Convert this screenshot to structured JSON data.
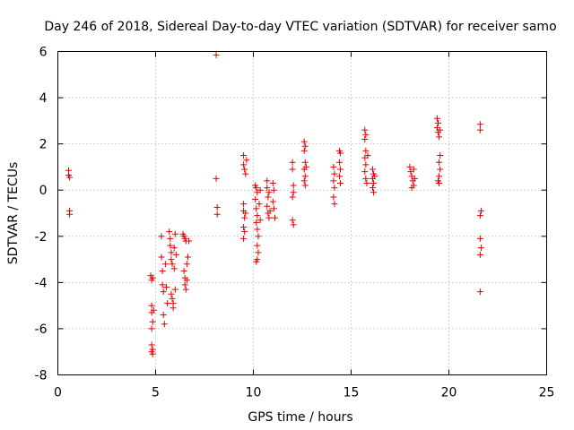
{
  "chart_data": {
    "type": "scatter",
    "title": "Day 246 of 2018, Sidereal Day-to-day VTEC variation (SDTVAR) for receiver samo",
    "xlabel": "GPS time / hours",
    "ylabel": "SDTVAR / TECUs",
    "xlim": [
      0,
      25
    ],
    "ylim": [
      -8,
      6
    ],
    "xticks": [
      0,
      5,
      10,
      15,
      20,
      25
    ],
    "yticks": [
      -8,
      -6,
      -4,
      -2,
      0,
      2,
      4,
      6
    ],
    "xtick_labels": [
      "0",
      "5",
      "10",
      "15",
      "20",
      "25"
    ],
    "ytick_labels": [
      "-8",
      "-6",
      "-4",
      "-2",
      "0",
      "2",
      "4",
      "6"
    ],
    "grid": true,
    "marker": "+",
    "color": "#e00000",
    "series": [
      {
        "name": "SDTVAR",
        "points": [
          [
            0.55,
            0.85
          ],
          [
            0.55,
            0.65
          ],
          [
            0.6,
            0.55
          ],
          [
            0.6,
            -0.9
          ],
          [
            0.6,
            -1.05
          ],
          [
            4.75,
            -3.7
          ],
          [
            4.8,
            -3.9
          ],
          [
            4.8,
            -5.0
          ],
          [
            4.8,
            -5.3
          ],
          [
            4.85,
            -5.7
          ],
          [
            4.8,
            -6.0
          ],
          [
            4.8,
            -6.7
          ],
          [
            4.85,
            -6.9
          ],
          [
            4.8,
            -7.0
          ],
          [
            4.85,
            -7.1
          ],
          [
            4.9,
            -5.2
          ],
          [
            4.85,
            -3.8
          ],
          [
            5.3,
            -2.0
          ],
          [
            5.3,
            -2.9
          ],
          [
            5.35,
            -3.5
          ],
          [
            5.35,
            -4.1
          ],
          [
            5.4,
            -4.4
          ],
          [
            5.4,
            -5.4
          ],
          [
            5.45,
            -5.8
          ],
          [
            5.5,
            -3.2
          ],
          [
            5.55,
            -4.2
          ],
          [
            5.6,
            -4.9
          ],
          [
            5.7,
            -1.8
          ],
          [
            5.75,
            -2.1
          ],
          [
            5.75,
            -2.4
          ],
          [
            5.8,
            -2.7
          ],
          [
            5.8,
            -3.0
          ],
          [
            5.85,
            -3.2
          ],
          [
            5.8,
            -4.5
          ],
          [
            5.85,
            -4.7
          ],
          [
            5.9,
            -4.9
          ],
          [
            5.9,
            -5.1
          ],
          [
            5.95,
            -2.5
          ],
          [
            5.95,
            -3.4
          ],
          [
            6.0,
            -4.3
          ],
          [
            6.0,
            -1.9
          ],
          [
            6.05,
            -2.8
          ],
          [
            6.4,
            -1.9
          ],
          [
            6.45,
            -2.0
          ],
          [
            6.5,
            -2.1
          ],
          [
            6.55,
            -2.2
          ],
          [
            6.45,
            -3.5
          ],
          [
            6.5,
            -3.8
          ],
          [
            6.5,
            -4.1
          ],
          [
            6.55,
            -4.3
          ],
          [
            6.6,
            -3.2
          ],
          [
            6.6,
            -3.9
          ],
          [
            6.65,
            -2.9
          ],
          [
            6.7,
            -2.2
          ],
          [
            8.1,
            5.85
          ],
          [
            8.1,
            0.5
          ],
          [
            8.15,
            -0.75
          ],
          [
            8.15,
            -1.05
          ],
          [
            9.5,
            1.5
          ],
          [
            9.5,
            1.1
          ],
          [
            9.55,
            0.9
          ],
          [
            9.6,
            0.7
          ],
          [
            9.65,
            1.3
          ],
          [
            9.5,
            -0.6
          ],
          [
            9.5,
            -0.9
          ],
          [
            9.55,
            -1.2
          ],
          [
            9.5,
            -1.6
          ],
          [
            9.55,
            -1.8
          ],
          [
            9.5,
            -2.1
          ],
          [
            9.6,
            -1.0
          ],
          [
            10.1,
            0.2
          ],
          [
            10.15,
            0.1
          ],
          [
            10.2,
            -0.1
          ],
          [
            10.1,
            -0.4
          ],
          [
            10.15,
            -0.8
          ],
          [
            10.2,
            -1.1
          ],
          [
            10.15,
            -1.4
          ],
          [
            10.2,
            -1.7
          ],
          [
            10.25,
            -2.0
          ],
          [
            10.2,
            -2.4
          ],
          [
            10.25,
            -2.7
          ],
          [
            10.2,
            -3.0
          ],
          [
            10.15,
            -3.1
          ],
          [
            10.3,
            -0.6
          ],
          [
            10.35,
            -1.3
          ],
          [
            10.35,
            0.0
          ],
          [
            10.7,
            0.4
          ],
          [
            10.7,
            0.1
          ],
          [
            10.75,
            -0.3
          ],
          [
            10.7,
            -0.7
          ],
          [
            10.75,
            -1.0
          ],
          [
            10.8,
            -1.2
          ],
          [
            10.85,
            -0.9
          ],
          [
            10.8,
            -0.1
          ],
          [
            11.0,
            0.3
          ],
          [
            11.05,
            0.0
          ],
          [
            11.0,
            -0.5
          ],
          [
            11.05,
            -0.8
          ],
          [
            11.1,
            -1.2
          ],
          [
            12.0,
            1.2
          ],
          [
            12.0,
            0.9
          ],
          [
            12.05,
            0.2
          ],
          [
            12.05,
            -0.1
          ],
          [
            12.0,
            -0.3
          ],
          [
            12.0,
            -1.3
          ],
          [
            12.05,
            -1.5
          ],
          [
            12.6,
            2.1
          ],
          [
            12.65,
            1.9
          ],
          [
            12.6,
            1.7
          ],
          [
            12.65,
            1.2
          ],
          [
            12.6,
            0.9
          ],
          [
            12.65,
            0.6
          ],
          [
            12.6,
            0.4
          ],
          [
            12.65,
            0.2
          ],
          [
            12.7,
            1.0
          ],
          [
            14.1,
            1.0
          ],
          [
            14.15,
            0.7
          ],
          [
            14.1,
            0.4
          ],
          [
            14.15,
            0.1
          ],
          [
            14.1,
            -0.3
          ],
          [
            14.15,
            -0.6
          ],
          [
            14.4,
            1.7
          ],
          [
            14.45,
            1.6
          ],
          [
            14.4,
            1.2
          ],
          [
            14.45,
            0.9
          ],
          [
            14.4,
            0.6
          ],
          [
            14.45,
            0.3
          ],
          [
            15.7,
            2.6
          ],
          [
            15.75,
            2.4
          ],
          [
            15.7,
            2.2
          ],
          [
            15.75,
            1.7
          ],
          [
            15.7,
            1.4
          ],
          [
            15.75,
            1.1
          ],
          [
            15.7,
            0.8
          ],
          [
            15.75,
            0.5
          ],
          [
            15.8,
            0.3
          ],
          [
            15.85,
            1.5
          ],
          [
            16.1,
            0.9
          ],
          [
            16.15,
            0.7
          ],
          [
            16.1,
            0.5
          ],
          [
            16.15,
            0.3
          ],
          [
            16.1,
            0.1
          ],
          [
            16.15,
            -0.1
          ],
          [
            16.2,
            0.6
          ],
          [
            18.0,
            1.0
          ],
          [
            18.05,
            0.8
          ],
          [
            18.1,
            0.6
          ],
          [
            18.15,
            0.4
          ],
          [
            18.2,
            0.2
          ],
          [
            18.1,
            0.1
          ],
          [
            18.2,
            0.9
          ],
          [
            18.25,
            0.5
          ],
          [
            19.4,
            3.1
          ],
          [
            19.45,
            2.9
          ],
          [
            19.4,
            2.7
          ],
          [
            19.45,
            2.5
          ],
          [
            19.5,
            2.3
          ],
          [
            19.55,
            1.5
          ],
          [
            19.5,
            1.2
          ],
          [
            19.55,
            0.9
          ],
          [
            19.5,
            0.6
          ],
          [
            19.45,
            0.4
          ],
          [
            19.5,
            0.3
          ],
          [
            19.55,
            2.6
          ],
          [
            21.6,
            2.85
          ],
          [
            21.6,
            2.6
          ],
          [
            21.65,
            -0.9
          ],
          [
            21.6,
            -1.1
          ],
          [
            21.6,
            -2.1
          ],
          [
            21.65,
            -2.5
          ],
          [
            21.6,
            -2.8
          ],
          [
            21.6,
            -4.4
          ]
        ]
      }
    ]
  }
}
